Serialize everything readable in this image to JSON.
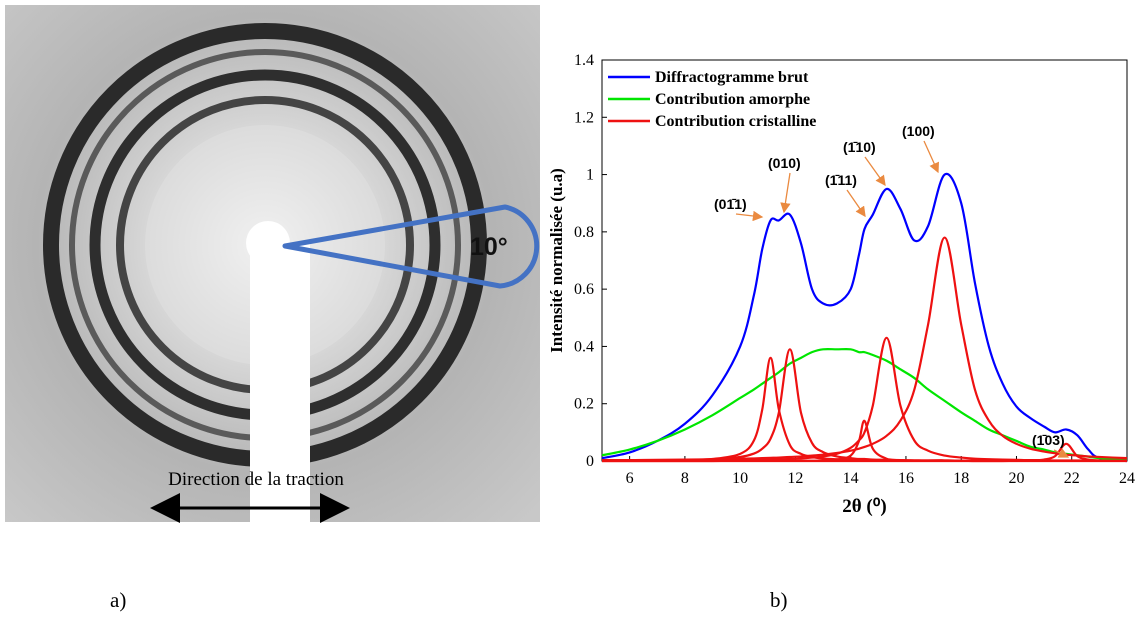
{
  "figure": {
    "traction_label": "Direction de la traction",
    "angle_label": "10°",
    "panel_labels": [
      "a)",
      "b)"
    ]
  },
  "chart_data": {
    "type": "line",
    "ylabel": "Intensité normalisée (u.a)",
    "xlabel": "2θ (⁰)",
    "xlim": [
      5,
      24
    ],
    "xticks": [
      6,
      8,
      10,
      12,
      14,
      16,
      18,
      20,
      22,
      24
    ],
    "ylim": [
      0,
      1.4
    ],
    "yticks": [
      0,
      0.2,
      0.4,
      0.6,
      0.8,
      1,
      1.2,
      1.4
    ],
    "legend": "upper left",
    "x": [
      5,
      6,
      7,
      8,
      9,
      10,
      10.5,
      10.8,
      11.1,
      11.4,
      11.8,
      12.2,
      12.6,
      13,
      13.5,
      14,
      14.3,
      14.5,
      14.8,
      15.3,
      15.8,
      16.3,
      16.8,
      17.4,
      18,
      18.5,
      19,
      19.5,
      20,
      20.5,
      21,
      21.4,
      21.8,
      22.2,
      22.6,
      23,
      24
    ],
    "series": [
      {
        "name": "Diffractogramme brut",
        "color": "#0000ff",
        "values": [
          0.01,
          0.03,
          0.07,
          0.13,
          0.23,
          0.4,
          0.58,
          0.74,
          0.84,
          0.84,
          0.86,
          0.76,
          0.6,
          0.55,
          0.55,
          0.6,
          0.72,
          0.81,
          0.86,
          0.95,
          0.88,
          0.77,
          0.82,
          1.0,
          0.9,
          0.62,
          0.4,
          0.27,
          0.19,
          0.15,
          0.12,
          0.1,
          0.11,
          0.09,
          0.04,
          0.01,
          0.0
        ]
      },
      {
        "name": "Contribution amorphe",
        "color": "#00e600",
        "values": [
          0.02,
          0.04,
          0.07,
          0.11,
          0.16,
          0.22,
          0.25,
          0.27,
          0.29,
          0.31,
          0.34,
          0.36,
          0.38,
          0.39,
          0.39,
          0.39,
          0.38,
          0.38,
          0.37,
          0.35,
          0.32,
          0.29,
          0.25,
          0.21,
          0.17,
          0.14,
          0.11,
          0.09,
          0.07,
          0.05,
          0.04,
          0.03,
          0.025,
          0.02,
          0.015,
          0.01,
          0.005
        ]
      },
      {
        "name": "Contribution cristalline",
        "color": "#ee1111",
        "values": [
          [
            0.001,
            0.001,
            0.002,
            0.003,
            0.007,
            0.025,
            0.072,
            0.18,
            0.36,
            0.18,
            0.056,
            0.025,
            0.014,
            0.009,
            0.006,
            0.004,
            0.003,
            0.003,
            0.003,
            0.002,
            0.002,
            0.002,
            0.002,
            0.002,
            0.001,
            0.001,
            0.001,
            0.001,
            0.001,
            0.001,
            0.001,
            0.001,
            0.001,
            0.001,
            0.001,
            0.001,
            0.001
          ],
          [
            0.001,
            0.001,
            0.002,
            0.003,
            0.006,
            0.014,
            0.026,
            0.043,
            0.078,
            0.169,
            0.39,
            0.169,
            0.063,
            0.031,
            0.016,
            0.01,
            0.007,
            0.007,
            0.005,
            0.004,
            0.003,
            0.002,
            0.002,
            0.002,
            0.001,
            0.001,
            0.001,
            0.001,
            0.001,
            0.001,
            0.001,
            0.001,
            0.001,
            0.001,
            0.001,
            0.001,
            0.001
          ],
          [
            0,
            0,
            0,
            0,
            0,
            0.001,
            0.001,
            0.001,
            0.001,
            0.001,
            0.001,
            0.001,
            0.001,
            0.002,
            0.005,
            0.019,
            0.07,
            0.14,
            0.043,
            0.008,
            0.003,
            0.002,
            0.001,
            0.001,
            0.001,
            0,
            0,
            0,
            0,
            0,
            0,
            0,
            0,
            0,
            0,
            0,
            0
          ],
          [
            0.001,
            0.001,
            0.001,
            0.002,
            0.002,
            0.003,
            0.004,
            0.004,
            0.005,
            0.006,
            0.007,
            0.009,
            0.012,
            0.016,
            0.025,
            0.046,
            0.072,
            0.1,
            0.193,
            0.43,
            0.193,
            0.072,
            0.036,
            0.019,
            0.012,
            0.008,
            0.006,
            0.005,
            0.004,
            0.003,
            0.003,
            0.002,
            0.002,
            0.002,
            0.002,
            0.001,
            0.001
          ],
          [
            0.003,
            0.003,
            0.004,
            0.005,
            0.006,
            0.008,
            0.009,
            0.01,
            0.011,
            0.012,
            0.014,
            0.016,
            0.019,
            0.022,
            0.028,
            0.036,
            0.043,
            0.049,
            0.06,
            0.088,
            0.141,
            0.248,
            0.476,
            0.78,
            0.476,
            0.248,
            0.141,
            0.088,
            0.06,
            0.043,
            0.033,
            0.027,
            0.022,
            0.019,
            0.016,
            0.014,
            0.01
          ],
          [
            0,
            0,
            0,
            0,
            0,
            0,
            0,
            0,
            0,
            0,
            0,
            0,
            0,
            0,
            0,
            0,
            0,
            0,
            0,
            0,
            0,
            0,
            0,
            0,
            0,
            0,
            0,
            0,
            0.001,
            0.002,
            0.005,
            0.017,
            0.06,
            0.017,
            0.005,
            0.002,
            0.001
          ]
        ]
      }
    ],
    "annotations": [
      "(01̄1)",
      "(010)",
      "(1̄11)",
      "(1̄10)",
      "(100)",
      "(1̄03)"
    ]
  }
}
